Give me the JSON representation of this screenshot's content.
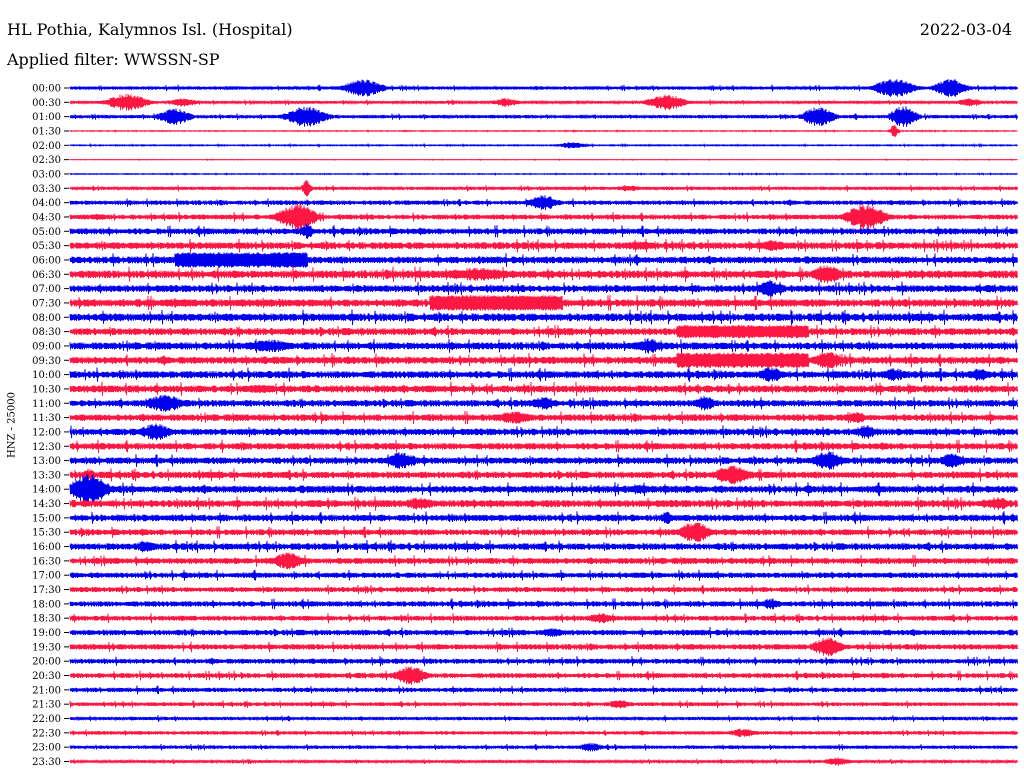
{
  "header": {
    "station": "HL Pothia, Kalymnos Isl. (Hospital)",
    "date": "2022-03-04",
    "filter": "Applied filter: WWSSN-SP"
  },
  "side_label": "HNZ - 25000",
  "chart_data": {
    "type": "line",
    "title": "HL Pothia, Kalymnos Isl. (Hospital)",
    "subtitle": "Applied filter: WWSSN-SP",
    "channel_label": "HNZ - 25000",
    "colors": [
      "#0000ee",
      "#ff1744"
    ],
    "rows": [
      {
        "time": "00:00",
        "noise": 1.2,
        "events": [
          {
            "t": 0.31,
            "a": 8,
            "w": 0.015
          },
          {
            "t": 0.87,
            "a": 9,
            "w": 0.015
          },
          {
            "t": 0.93,
            "a": 9,
            "w": 0.012
          }
        ]
      },
      {
        "time": "00:30",
        "noise": 1.0,
        "events": [
          {
            "t": 0.06,
            "a": 8,
            "w": 0.015
          },
          {
            "t": 0.12,
            "a": 4,
            "w": 0.01
          },
          {
            "t": 0.46,
            "a": 4,
            "w": 0.01
          },
          {
            "t": 0.63,
            "a": 7,
            "w": 0.015
          },
          {
            "t": 0.95,
            "a": 4,
            "w": 0.01
          }
        ]
      },
      {
        "time": "01:00",
        "noise": 1.2,
        "events": [
          {
            "t": 0.11,
            "a": 8,
            "w": 0.012
          },
          {
            "t": 0.25,
            "a": 10,
            "w": 0.015
          },
          {
            "t": 0.79,
            "a": 9,
            "w": 0.012
          },
          {
            "t": 0.88,
            "a": 10,
            "w": 0.01
          }
        ]
      },
      {
        "time": "01:30",
        "noise": 0.3,
        "events": [
          {
            "t": 0.87,
            "a": 6,
            "w": 0.003
          }
        ]
      },
      {
        "time": "02:00",
        "noise": 0.4,
        "events": [
          {
            "t": 0.53,
            "a": 3,
            "w": 0.01
          }
        ]
      },
      {
        "time": "02:30",
        "noise": 0.2,
        "events": []
      },
      {
        "time": "03:00",
        "noise": 0.3,
        "events": []
      },
      {
        "time": "03:30",
        "noise": 1.2,
        "events": [
          {
            "t": 0.25,
            "a": 9,
            "w": 0.003
          },
          {
            "t": 0.59,
            "a": 3,
            "w": 0.01
          }
        ]
      },
      {
        "time": "04:00",
        "noise": 1.6,
        "events": [
          {
            "t": 0.5,
            "a": 7,
            "w": 0.012
          }
        ]
      },
      {
        "time": "04:30",
        "noise": 1.8,
        "events": [
          {
            "t": 0.24,
            "a": 12,
            "w": 0.015
          },
          {
            "t": 0.84,
            "a": 12,
            "w": 0.015
          },
          {
            "t": 0.03,
            "a": 3,
            "w": 0.01
          }
        ]
      },
      {
        "time": "05:00",
        "noise": 2.2,
        "events": [
          {
            "t": 0.25,
            "a": 7,
            "w": 0.005
          }
        ]
      },
      {
        "time": "05:30",
        "noise": 2.5,
        "events": [
          {
            "t": 0.6,
            "a": 4,
            "w": 0.02
          },
          {
            "t": 0.74,
            "a": 5,
            "w": 0.015
          }
        ]
      },
      {
        "time": "06:00",
        "noise": 2.5,
        "events": [
          {
            "t": 0.11,
            "a": 7,
            "w": 0.07,
            "flat": true
          }
        ]
      },
      {
        "time": "06:30",
        "noise": 2.8,
        "events": [
          {
            "t": 0.43,
            "a": 6,
            "w": 0.03
          },
          {
            "t": 0.8,
            "a": 9,
            "w": 0.012
          }
        ]
      },
      {
        "time": "07:00",
        "noise": 2.5,
        "events": [
          {
            "t": 0.74,
            "a": 8,
            "w": 0.01
          }
        ]
      },
      {
        "time": "07:30",
        "noise": 2.8,
        "events": [
          {
            "t": 0.38,
            "a": 7,
            "w": 0.07,
            "flat": true
          }
        ]
      },
      {
        "time": "08:00",
        "noise": 2.8,
        "events": []
      },
      {
        "time": "08:30",
        "noise": 2.6,
        "events": [
          {
            "t": 0.64,
            "a": 6,
            "w": 0.07,
            "flat": true
          }
        ]
      },
      {
        "time": "09:00",
        "noise": 2.6,
        "events": [
          {
            "t": 0.21,
            "a": 6,
            "w": 0.02
          },
          {
            "t": 0.61,
            "a": 7,
            "w": 0.012
          }
        ]
      },
      {
        "time": "09:30",
        "noise": 2.6,
        "events": [
          {
            "t": 0.64,
            "a": 7,
            "w": 0.07,
            "flat": true
          },
          {
            "t": 0.8,
            "a": 9,
            "w": 0.01
          }
        ]
      },
      {
        "time": "10:00",
        "noise": 2.6,
        "events": [
          {
            "t": 0.74,
            "a": 7,
            "w": 0.01
          },
          {
            "t": 0.87,
            "a": 6,
            "w": 0.01
          },
          {
            "t": 0.96,
            "a": 6,
            "w": 0.008
          }
        ]
      },
      {
        "time": "10:30",
        "noise": 2.6,
        "events": [
          {
            "t": 0.2,
            "a": 4,
            "w": 0.02
          }
        ]
      },
      {
        "time": "11:00",
        "noise": 2.4,
        "events": [
          {
            "t": 0.1,
            "a": 8,
            "w": 0.015
          },
          {
            "t": 0.5,
            "a": 6,
            "w": 0.01
          },
          {
            "t": 0.67,
            "a": 7,
            "w": 0.008
          }
        ]
      },
      {
        "time": "11:30",
        "noise": 2.4,
        "events": [
          {
            "t": 0.47,
            "a": 6,
            "w": 0.015
          },
          {
            "t": 0.83,
            "a": 5,
            "w": 0.01
          }
        ]
      },
      {
        "time": "12:00",
        "noise": 2.4,
        "events": [
          {
            "t": 0.09,
            "a": 8,
            "w": 0.012
          },
          {
            "t": 0.84,
            "a": 7,
            "w": 0.008
          }
        ]
      },
      {
        "time": "12:30",
        "noise": 2.4,
        "events": [
          {
            "t": 0.18,
            "a": 3,
            "w": 0.01
          }
        ]
      },
      {
        "time": "13:00",
        "noise": 2.4,
        "events": [
          {
            "t": 0.35,
            "a": 8,
            "w": 0.012
          },
          {
            "t": 0.8,
            "a": 9,
            "w": 0.012
          },
          {
            "t": 0.93,
            "a": 7,
            "w": 0.01
          }
        ]
      },
      {
        "time": "13:30",
        "noise": 2.4,
        "events": [
          {
            "t": 0.7,
            "a": 9,
            "w": 0.015
          },
          {
            "t": 0.02,
            "a": 6,
            "w": 0.005
          }
        ]
      },
      {
        "time": "14:00",
        "noise": 2.6,
        "events": [
          {
            "t": 0.02,
            "a": 14,
            "w": 0.015
          },
          {
            "t": 0.6,
            "a": 5,
            "w": 0.01
          }
        ]
      },
      {
        "time": "14:30",
        "noise": 2.6,
        "events": [
          {
            "t": 0.37,
            "a": 6,
            "w": 0.012
          },
          {
            "t": 0.98,
            "a": 6,
            "w": 0.01
          }
        ]
      },
      {
        "time": "15:00",
        "noise": 2.4,
        "events": [
          {
            "t": 0.63,
            "a": 6,
            "w": 0.005
          }
        ]
      },
      {
        "time": "15:30",
        "noise": 2.2,
        "events": [
          {
            "t": 0.66,
            "a": 10,
            "w": 0.012
          }
        ]
      },
      {
        "time": "16:00",
        "noise": 2.4,
        "events": [
          {
            "t": 0.08,
            "a": 5,
            "w": 0.01
          }
        ]
      },
      {
        "time": "16:30",
        "noise": 2.2,
        "events": [
          {
            "t": 0.23,
            "a": 8,
            "w": 0.012
          }
        ]
      },
      {
        "time": "17:00",
        "noise": 2.0,
        "events": []
      },
      {
        "time": "17:30",
        "noise": 1.8,
        "events": []
      },
      {
        "time": "18:00",
        "noise": 2.0,
        "events": [
          {
            "t": 0.74,
            "a": 5,
            "w": 0.008
          }
        ]
      },
      {
        "time": "18:30",
        "noise": 1.8,
        "events": [
          {
            "t": 0.56,
            "a": 5,
            "w": 0.01
          }
        ]
      },
      {
        "time": "19:00",
        "noise": 2.0,
        "events": [
          {
            "t": 0.51,
            "a": 4,
            "w": 0.01
          }
        ]
      },
      {
        "time": "19:30",
        "noise": 2.0,
        "events": [
          {
            "t": 0.8,
            "a": 9,
            "w": 0.012
          }
        ]
      },
      {
        "time": "20:00",
        "noise": 1.8,
        "events": []
      },
      {
        "time": "20:30",
        "noise": 1.8,
        "events": [
          {
            "t": 0.36,
            "a": 9,
            "w": 0.012
          }
        ]
      },
      {
        "time": "21:00",
        "noise": 1.6,
        "events": []
      },
      {
        "time": "21:30",
        "noise": 1.4,
        "events": [
          {
            "t": 0.58,
            "a": 4,
            "w": 0.01
          }
        ]
      },
      {
        "time": "22:00",
        "noise": 1.2,
        "events": []
      },
      {
        "time": "22:30",
        "noise": 1.3,
        "events": [
          {
            "t": 0.71,
            "a": 4,
            "w": 0.01
          }
        ]
      },
      {
        "time": "23:00",
        "noise": 1.2,
        "events": [
          {
            "t": 0.55,
            "a": 4,
            "w": 0.01
          }
        ]
      },
      {
        "time": "23:30",
        "noise": 1.0,
        "events": [
          {
            "t": 0.81,
            "a": 4,
            "w": 0.01
          }
        ]
      }
    ]
  }
}
